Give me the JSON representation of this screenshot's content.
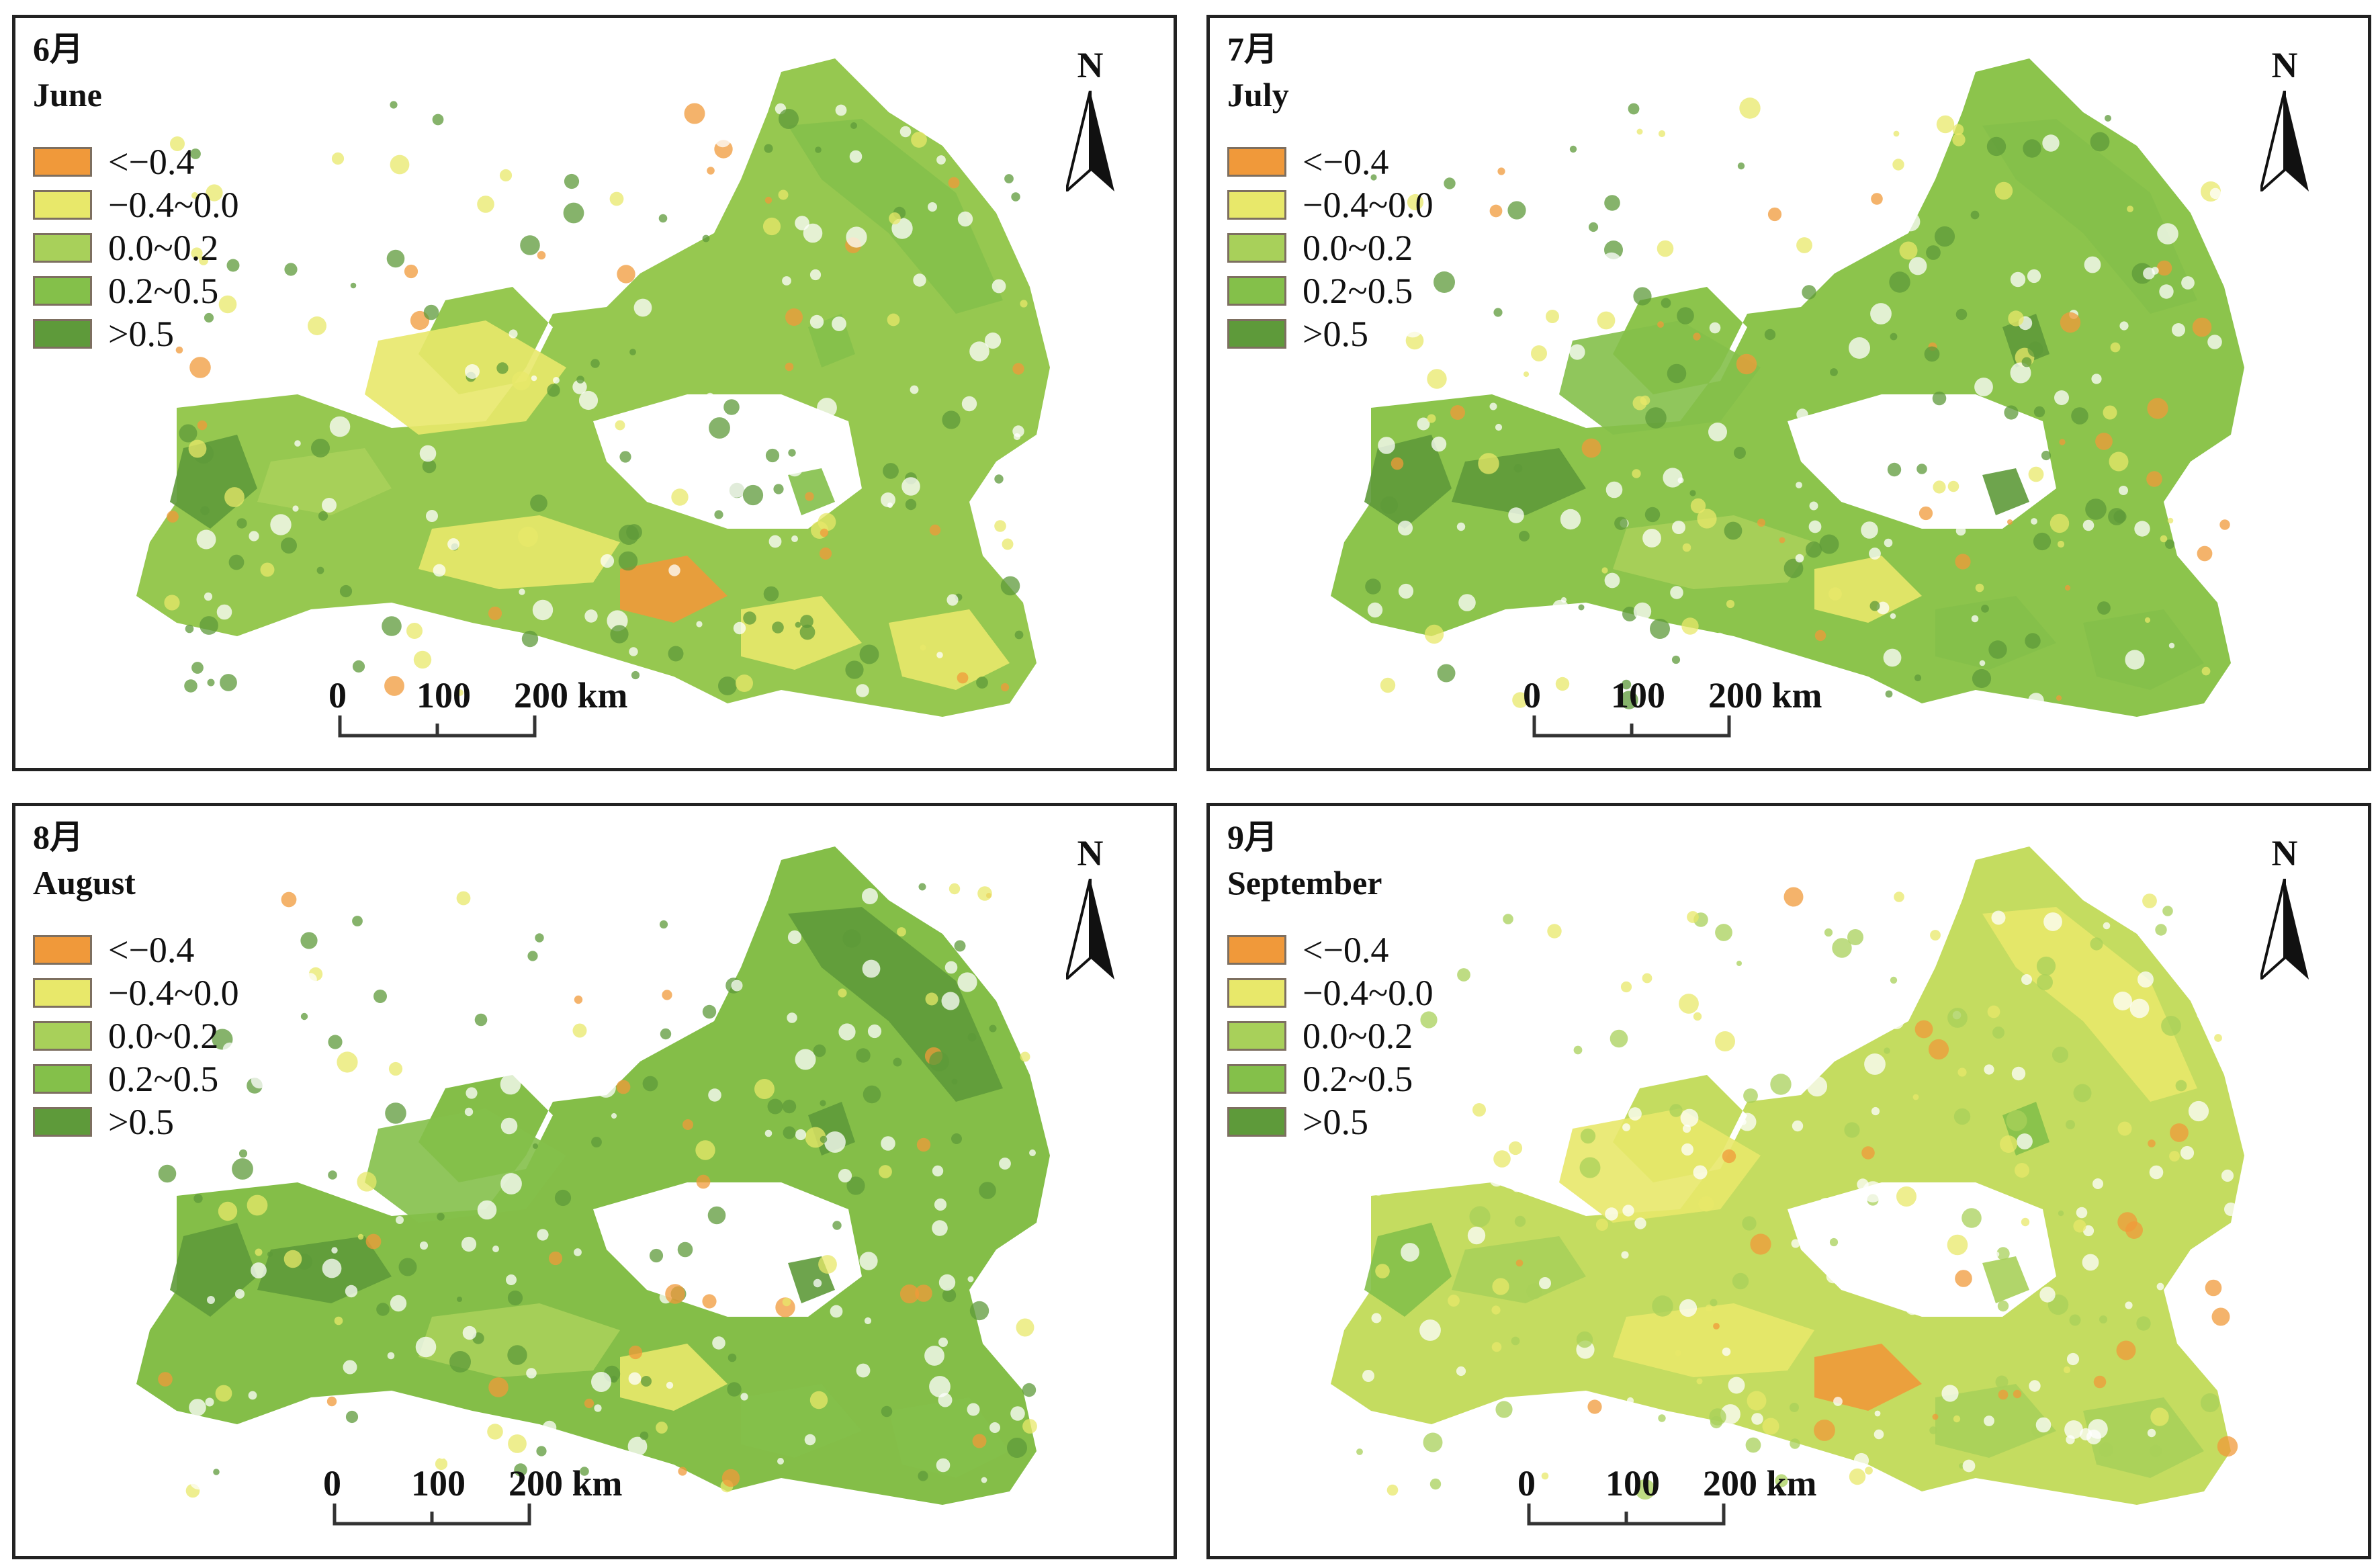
{
  "legend": {
    "classes": [
      {
        "label": "<−0.4",
        "color": "#f0993a"
      },
      {
        "label": "−0.4~0.0",
        "color": "#e8e86a"
      },
      {
        "label": "0.0~0.2",
        "color": "#a8d05a"
      },
      {
        "label": "0.2~0.5",
        "color": "#84c04a"
      },
      {
        "label": ">0.5",
        "color": "#5e9a3a"
      }
    ]
  },
  "north": {
    "letter": "N"
  },
  "scale": {
    "labels": [
      "0",
      "100",
      "200 km"
    ]
  },
  "panels": [
    {
      "title_cn": "6月",
      "title_en": "June",
      "dominant": "mixed-green",
      "dominant_color": "#96c850"
    },
    {
      "title_cn": "7月",
      "title_en": "July",
      "dominant": "green",
      "dominant_color": "#8cc44c"
    },
    {
      "title_cn": "8月",
      "title_en": "August",
      "dominant": "green",
      "dominant_color": "#84be48"
    },
    {
      "title_cn": "9月",
      "title_en": "September",
      "dominant": "yellow-green",
      "dominant_color": "#c4dc60"
    }
  ],
  "colors": {
    "frame": "#222222",
    "water_bg": "#ffffff",
    "lake": "#7cb850"
  }
}
